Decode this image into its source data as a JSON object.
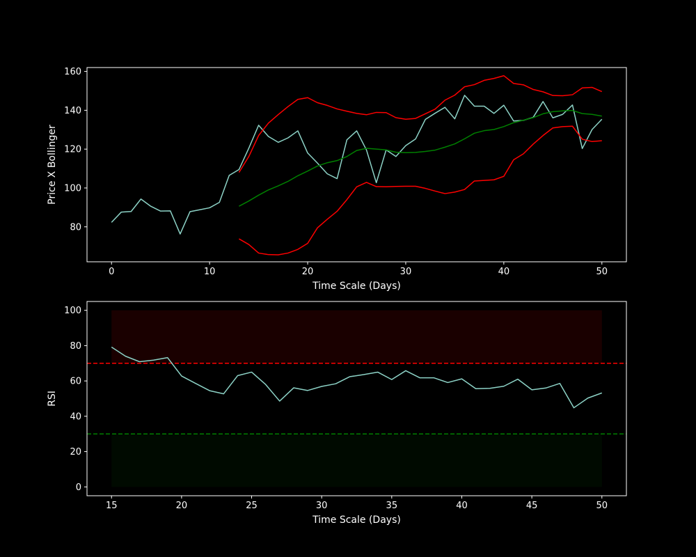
{
  "chart_data": [
    {
      "type": "line",
      "title": "",
      "xlabel": "Time Scale (Days)",
      "ylabel": "Price X Bollinger",
      "xlim": [
        -2.5,
        52.5
      ],
      "ylim": [
        62,
        162
      ],
      "xticks": [
        0,
        10,
        20,
        30,
        40,
        50
      ],
      "yticks": [
        80,
        100,
        120,
        140,
        160
      ],
      "grid": false,
      "colors": {
        "price": "#8dd3c7",
        "upper": "#ff0000",
        "lower": "#ff0000",
        "sma": "#008000"
      },
      "series": [
        {
          "key": "price",
          "x_start": 0,
          "values": [
            82.3,
            87.6,
            87.9,
            94.3,
            90.6,
            88.1,
            88.2,
            76.3,
            87.8,
            88.8,
            89.8,
            92.6,
            106.5,
            109.5,
            120.5,
            132.3,
            126.5,
            123.5,
            125.8,
            129.4,
            118.0,
            112.8,
            107.3,
            104.8,
            124.8,
            129.4,
            119.5,
            102.7,
            119.6,
            116.2,
            121.8,
            125.2,
            135.3,
            138.5,
            141.5,
            135.6,
            147.7,
            142.1,
            142.1,
            138.4,
            142.6,
            134.5,
            134.8,
            136.4,
            144.5,
            136.1,
            137.9,
            142.7,
            120.3,
            130.1,
            135.4
          ]
        },
        {
          "key": "upper",
          "x_start": 13,
          "values": [
            108.0,
            116.2,
            127.0,
            133.4,
            137.8,
            141.9,
            145.6,
            146.5,
            143.9,
            142.5,
            140.7,
            139.5,
            138.4,
            137.7,
            138.9,
            138.8,
            136.2,
            135.4,
            135.8,
            138.2,
            140.6,
            145.2,
            147.8,
            152.1,
            153.2,
            155.4,
            156.4,
            157.8,
            153.8,
            153.1,
            150.7,
            149.5,
            147.6,
            147.5,
            148.0,
            151.5,
            151.8,
            149.6
          ]
        },
        {
          "key": "sma",
          "x_start": 13,
          "values": [
            90.6,
            93.3,
            96.3,
            99.0,
            101.1,
            103.4,
            106.3,
            108.7,
            111.3,
            113.0,
            114.1,
            116.2,
            119.3,
            120.4,
            120.0,
            119.6,
            118.4,
            118.2,
            118.3,
            118.8,
            119.5,
            121.0,
            122.7,
            125.3,
            128.2,
            129.5,
            130.1,
            131.6,
            133.6,
            134.9,
            136.2,
            138.2,
            139.3,
            139.7,
            139.9,
            138.3,
            137.9,
            137.0
          ]
        },
        {
          "key": "lower",
          "x_start": 13,
          "values": [
            73.8,
            70.9,
            66.5,
            65.7,
            65.6,
            66.5,
            68.4,
            71.5,
            79.5,
            83.9,
            88.0,
            94.0,
            100.6,
            102.9,
            100.7,
            100.6,
            100.8,
            100.9,
            100.9,
            99.8,
            98.4,
            97.1,
            97.9,
            99.2,
            103.6,
            103.9,
            104.2,
            106.0,
            114.5,
            117.6,
            122.6,
            127.0,
            130.9,
            131.6,
            131.8,
            125.1,
            123.9,
            124.3
          ]
        }
      ]
    },
    {
      "type": "line",
      "title": "",
      "xlabel": "Time Scale (Days)",
      "ylabel": "RSI",
      "xlim": [
        13.25,
        51.75
      ],
      "ylim": [
        -5,
        105
      ],
      "xticks": [
        15,
        20,
        25,
        30,
        35,
        40,
        45,
        50
      ],
      "yticks": [
        0,
        20,
        40,
        60,
        80,
        100
      ],
      "grid": false,
      "overbought_line": 70,
      "oversold_line": 30,
      "overbought_band": [
        70,
        100
      ],
      "oversold_band": [
        0,
        30
      ],
      "band_x_range": [
        15,
        50
      ],
      "colors": {
        "rsi": "#8dd3c7",
        "overbought": "#ff0000",
        "oversold": "#008000",
        "overbought_band": "#1a0000",
        "oversold_band": "#000a00"
      },
      "series": [
        {
          "key": "rsi",
          "x_start": 15,
          "values": [
            79.2,
            74.0,
            70.9,
            71.8,
            73.2,
            62.8,
            58.6,
            54.5,
            52.7,
            63.0,
            65.0,
            58.0,
            48.6,
            56.1,
            54.6,
            56.9,
            58.4,
            62.4,
            63.6,
            65.0,
            60.8,
            65.8,
            61.8,
            61.8,
            59.1,
            61.2,
            55.6,
            55.8,
            57.0,
            61.0,
            55.0,
            56.0,
            58.6,
            44.8,
            50.3,
            53.2
          ]
        }
      ]
    }
  ]
}
